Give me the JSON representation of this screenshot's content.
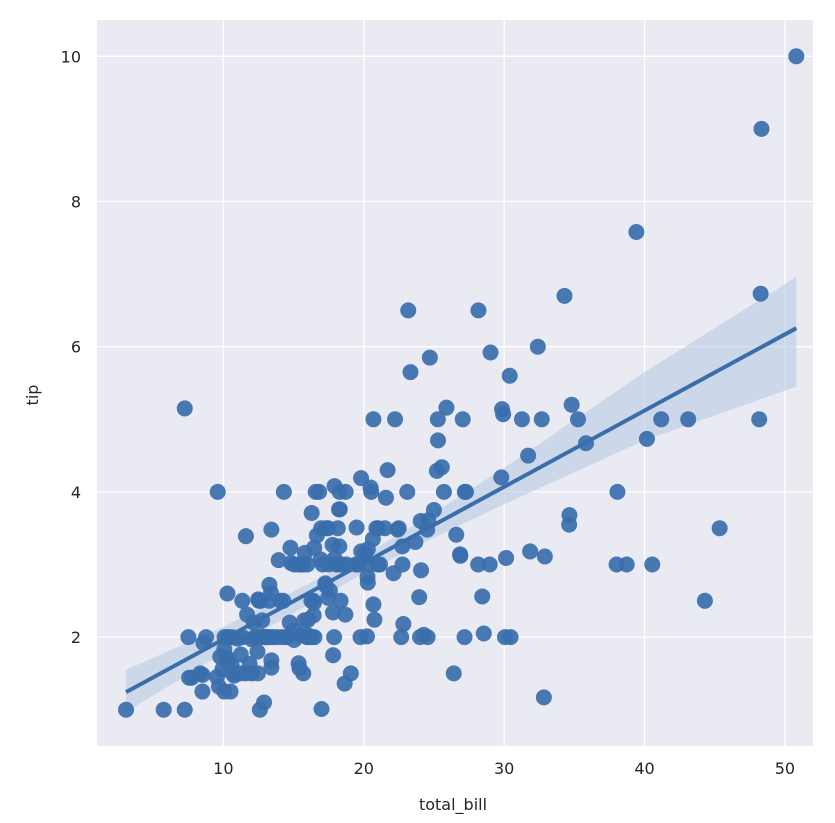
{
  "chart_data": {
    "type": "scatter",
    "title": "",
    "xlabel": "total_bill",
    "ylabel": "tip",
    "xlim": [
      1.0,
      52.0
    ],
    "ylim": [
      0.5,
      10.5
    ],
    "xticks": [
      10,
      20,
      30,
      40,
      50
    ],
    "yticks": [
      2,
      4,
      6,
      8,
      10
    ],
    "grid": true,
    "background": "#EAEAF2",
    "grid_color": "#FFFFFF",
    "point_color": "#3A6EAB",
    "line_color": "#3A6EAB",
    "band_color": "#B8CCE4",
    "points": [
      [
        3.07,
        1.0
      ],
      [
        5.75,
        1.0
      ],
      [
        7.25,
        1.0
      ],
      [
        7.25,
        5.15
      ],
      [
        7.51,
        2.0
      ],
      [
        7.56,
        1.44
      ],
      [
        7.74,
        1.44
      ],
      [
        8.35,
        1.5
      ],
      [
        8.52,
        1.48
      ],
      [
        8.51,
        1.25
      ],
      [
        8.58,
        1.92
      ],
      [
        8.77,
        2.0
      ],
      [
        9.55,
        1.45
      ],
      [
        9.6,
        4.0
      ],
      [
        9.68,
        1.32
      ],
      [
        9.78,
        1.73
      ],
      [
        9.94,
        1.56
      ],
      [
        10.07,
        1.83
      ],
      [
        10.07,
        1.25
      ],
      [
        10.09,
        2.0
      ],
      [
        10.27,
        1.71
      ],
      [
        10.29,
        2.6
      ],
      [
        10.33,
        2.0
      ],
      [
        10.33,
        1.67
      ],
      [
        10.34,
        1.66
      ],
      [
        10.34,
        2.0
      ],
      [
        10.51,
        1.25
      ],
      [
        10.59,
        1.61
      ],
      [
        10.63,
        2.0
      ],
      [
        10.65,
        1.5
      ],
      [
        10.77,
        1.47
      ],
      [
        11.02,
        1.98
      ],
      [
        11.17,
        1.5
      ],
      [
        11.24,
        1.76
      ],
      [
        11.35,
        2.5
      ],
      [
        11.38,
        2.0
      ],
      [
        11.59,
        1.5
      ],
      [
        11.61,
        3.39
      ],
      [
        11.69,
        2.31
      ],
      [
        11.87,
        1.63
      ],
      [
        12.02,
        1.97
      ],
      [
        12.03,
        1.5
      ],
      [
        12.16,
        2.2
      ],
      [
        12.26,
        2.0
      ],
      [
        12.43,
        1.8
      ],
      [
        12.46,
        1.5
      ],
      [
        12.48,
        2.52
      ],
      [
        12.54,
        2.5
      ],
      [
        12.6,
        1.0
      ],
      [
        12.66,
        2.5
      ],
      [
        12.69,
        2.0
      ],
      [
        12.74,
        2.01
      ],
      [
        12.76,
        2.23
      ],
      [
        12.9,
        1.1
      ],
      [
        13.0,
        2.0
      ],
      [
        13.03,
        2.0
      ],
      [
        13.13,
        2.0
      ],
      [
        13.16,
        2.0
      ],
      [
        13.27,
        2.5
      ],
      [
        13.28,
        2.72
      ],
      [
        13.37,
        2.0
      ],
      [
        13.39,
        2.61
      ],
      [
        13.42,
        3.48
      ],
      [
        13.42,
        1.68
      ],
      [
        13.42,
        1.58
      ],
      [
        13.51,
        2.0
      ],
      [
        13.81,
        2.0
      ],
      [
        13.94,
        3.06
      ],
      [
        14.07,
        2.5
      ],
      [
        14.15,
        2.0
      ],
      [
        14.26,
        2.5
      ],
      [
        14.31,
        4.0
      ],
      [
        14.48,
        2.0
      ],
      [
        14.52,
        2.0
      ],
      [
        14.73,
        2.2
      ],
      [
        14.78,
        3.23
      ],
      [
        14.83,
        3.02
      ],
      [
        15.01,
        2.09
      ],
      [
        15.04,
        1.96
      ],
      [
        15.06,
        3.0
      ],
      [
        15.36,
        1.64
      ],
      [
        15.38,
        3.0
      ],
      [
        15.42,
        1.57
      ],
      [
        15.48,
        2.02
      ],
      [
        15.53,
        3.0
      ],
      [
        15.69,
        1.5
      ],
      [
        15.69,
        3.0
      ],
      [
        15.77,
        2.23
      ],
      [
        15.81,
        3.16
      ],
      [
        15.95,
        2.0
      ],
      [
        15.98,
        2.03
      ],
      [
        15.98,
        3.0
      ],
      [
        16.0,
        2.0
      ],
      [
        16.04,
        2.24
      ],
      [
        16.21,
        2.0
      ],
      [
        16.27,
        2.5
      ],
      [
        16.29,
        3.71
      ],
      [
        16.31,
        2.0
      ],
      [
        16.4,
        2.5
      ],
      [
        16.43,
        2.3
      ],
      [
        16.45,
        2.47
      ],
      [
        16.47,
        3.23
      ],
      [
        16.49,
        2.0
      ],
      [
        16.58,
        4.0
      ],
      [
        16.66,
        3.4
      ],
      [
        16.82,
        4.0
      ],
      [
        16.93,
        3.07
      ],
      [
        16.97,
        3.5
      ],
      [
        16.99,
        1.01
      ],
      [
        17.07,
        3.0
      ],
      [
        17.26,
        2.74
      ],
      [
        17.29,
        2.71
      ],
      [
        17.31,
        3.5
      ],
      [
        17.46,
        2.54
      ],
      [
        17.47,
        3.5
      ],
      [
        17.51,
        3.0
      ],
      [
        17.59,
        2.64
      ],
      [
        17.78,
        3.27
      ],
      [
        17.81,
        2.34
      ],
      [
        17.82,
        1.75
      ],
      [
        17.89,
        2.0
      ],
      [
        17.92,
        4.08
      ],
      [
        17.92,
        3.08
      ],
      [
        18.04,
        3.0
      ],
      [
        18.15,
        3.5
      ],
      [
        18.24,
        3.76
      ],
      [
        18.26,
        3.25
      ],
      [
        18.28,
        4.0
      ],
      [
        18.29,
        3.76
      ],
      [
        18.29,
        3.0
      ],
      [
        18.35,
        2.5
      ],
      [
        18.43,
        3.0
      ],
      [
        18.64,
        1.36
      ],
      [
        18.69,
        2.31
      ],
      [
        18.71,
        4.0
      ],
      [
        18.78,
        3.0
      ],
      [
        19.08,
        1.5
      ],
      [
        19.44,
        3.0
      ],
      [
        19.49,
        3.51
      ],
      [
        19.65,
        3.0
      ],
      [
        19.77,
        2.0
      ],
      [
        19.81,
        4.19
      ],
      [
        19.82,
        3.18
      ],
      [
        20.08,
        3.15
      ],
      [
        20.23,
        2.01
      ],
      [
        20.27,
        2.83
      ],
      [
        20.29,
        3.21
      ],
      [
        20.29,
        2.75
      ],
      [
        20.45,
        3.0
      ],
      [
        20.49,
        4.06
      ],
      [
        20.53,
        4.0
      ],
      [
        20.65,
        3.35
      ],
      [
        20.69,
        2.45
      ],
      [
        20.69,
        5.0
      ],
      [
        20.76,
        2.24
      ],
      [
        20.9,
        3.5
      ],
      [
        21.01,
        3.5
      ],
      [
        21.01,
        3.0
      ],
      [
        21.16,
        3.0
      ],
      [
        21.5,
        3.5
      ],
      [
        21.58,
        3.92
      ],
      [
        21.7,
        4.3
      ],
      [
        22.12,
        2.88
      ],
      [
        22.23,
        5.0
      ],
      [
        22.42,
        3.48
      ],
      [
        22.49,
        3.5
      ],
      [
        22.67,
        2.0
      ],
      [
        22.75,
        3.25
      ],
      [
        22.76,
        3.0
      ],
      [
        22.82,
        2.18
      ],
      [
        23.1,
        4.0
      ],
      [
        23.17,
        6.5
      ],
      [
        23.33,
        5.65
      ],
      [
        23.68,
        3.31
      ],
      [
        23.95,
        2.55
      ],
      [
        24.01,
        2.0
      ],
      [
        24.06,
        3.6
      ],
      [
        24.08,
        2.92
      ],
      [
        24.27,
        2.03
      ],
      [
        24.52,
        3.48
      ],
      [
        24.55,
        2.0
      ],
      [
        24.59,
        3.61
      ],
      [
        24.71,
        5.85
      ],
      [
        25.0,
        3.75
      ],
      [
        25.21,
        4.29
      ],
      [
        25.28,
        5.0
      ],
      [
        25.29,
        4.71
      ],
      [
        25.56,
        4.34
      ],
      [
        25.71,
        4.0
      ],
      [
        25.89,
        5.16
      ],
      [
        26.41,
        1.5
      ],
      [
        26.59,
        3.41
      ],
      [
        26.86,
        3.14
      ],
      [
        26.88,
        3.12
      ],
      [
        27.05,
        5.0
      ],
      [
        27.18,
        2.0
      ],
      [
        27.2,
        4.0
      ],
      [
        27.28,
        4.0
      ],
      [
        28.15,
        3.0
      ],
      [
        28.17,
        6.5
      ],
      [
        28.44,
        2.56
      ],
      [
        28.55,
        2.05
      ],
      [
        28.97,
        3.0
      ],
      [
        29.03,
        5.92
      ],
      [
        29.8,
        4.2
      ],
      [
        29.85,
        5.14
      ],
      [
        29.93,
        5.07
      ],
      [
        30.06,
        2.0
      ],
      [
        30.14,
        3.09
      ],
      [
        30.4,
        5.6
      ],
      [
        30.46,
        2.0
      ],
      [
        31.27,
        5.0
      ],
      [
        31.71,
        4.5
      ],
      [
        31.85,
        3.18
      ],
      [
        32.4,
        6.0
      ],
      [
        32.68,
        5.0
      ],
      [
        32.83,
        1.17
      ],
      [
        32.9,
        3.11
      ],
      [
        34.3,
        6.7
      ],
      [
        34.63,
        3.55
      ],
      [
        34.65,
        3.68
      ],
      [
        34.81,
        5.2
      ],
      [
        35.26,
        5.0
      ],
      [
        35.83,
        4.67
      ],
      [
        38.01,
        3.0
      ],
      [
        38.07,
        4.0
      ],
      [
        38.73,
        3.0
      ],
      [
        39.42,
        7.58
      ],
      [
        40.17,
        4.73
      ],
      [
        40.55,
        3.0
      ],
      [
        41.19,
        5.0
      ],
      [
        43.11,
        5.0
      ],
      [
        44.3,
        2.5
      ],
      [
        45.35,
        3.5
      ],
      [
        48.17,
        5.0
      ],
      [
        48.27,
        6.73
      ],
      [
        48.33,
        9.0
      ],
      [
        50.81,
        10.0
      ]
    ],
    "regression": {
      "slope": 0.105,
      "intercept": 0.92,
      "x_range": [
        3.07,
        50.81
      ]
    },
    "confidence_band": [
      [
        3.07,
        0.97,
        1.55
      ],
      [
        10.0,
        1.78,
        2.14
      ],
      [
        20.0,
        2.88,
        3.12
      ],
      [
        25.0,
        3.37,
        3.71
      ],
      [
        30.0,
        3.83,
        4.33
      ],
      [
        40.0,
        4.71,
        5.65
      ],
      [
        50.81,
        5.45,
        6.96
      ]
    ]
  }
}
